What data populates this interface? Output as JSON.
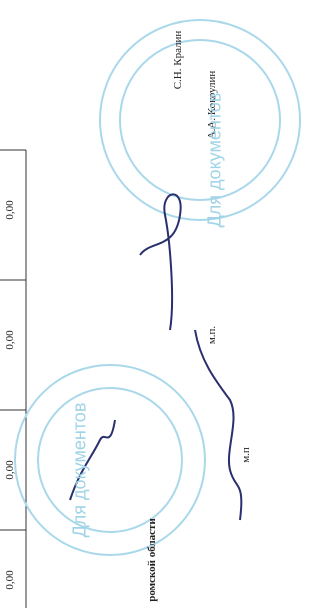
{
  "table": {
    "cells": [
      "0,00",
      "0,00",
      "0,00",
      "0,00"
    ]
  },
  "signatories": [
    "С.Н. Кралин",
    "А.А. Кокоулин"
  ],
  "seal_notes": [
    "м.п.",
    "м.п"
  ],
  "department": "ромской области",
  "stamps": [
    "Для документов",
    "Для документов"
  ]
}
